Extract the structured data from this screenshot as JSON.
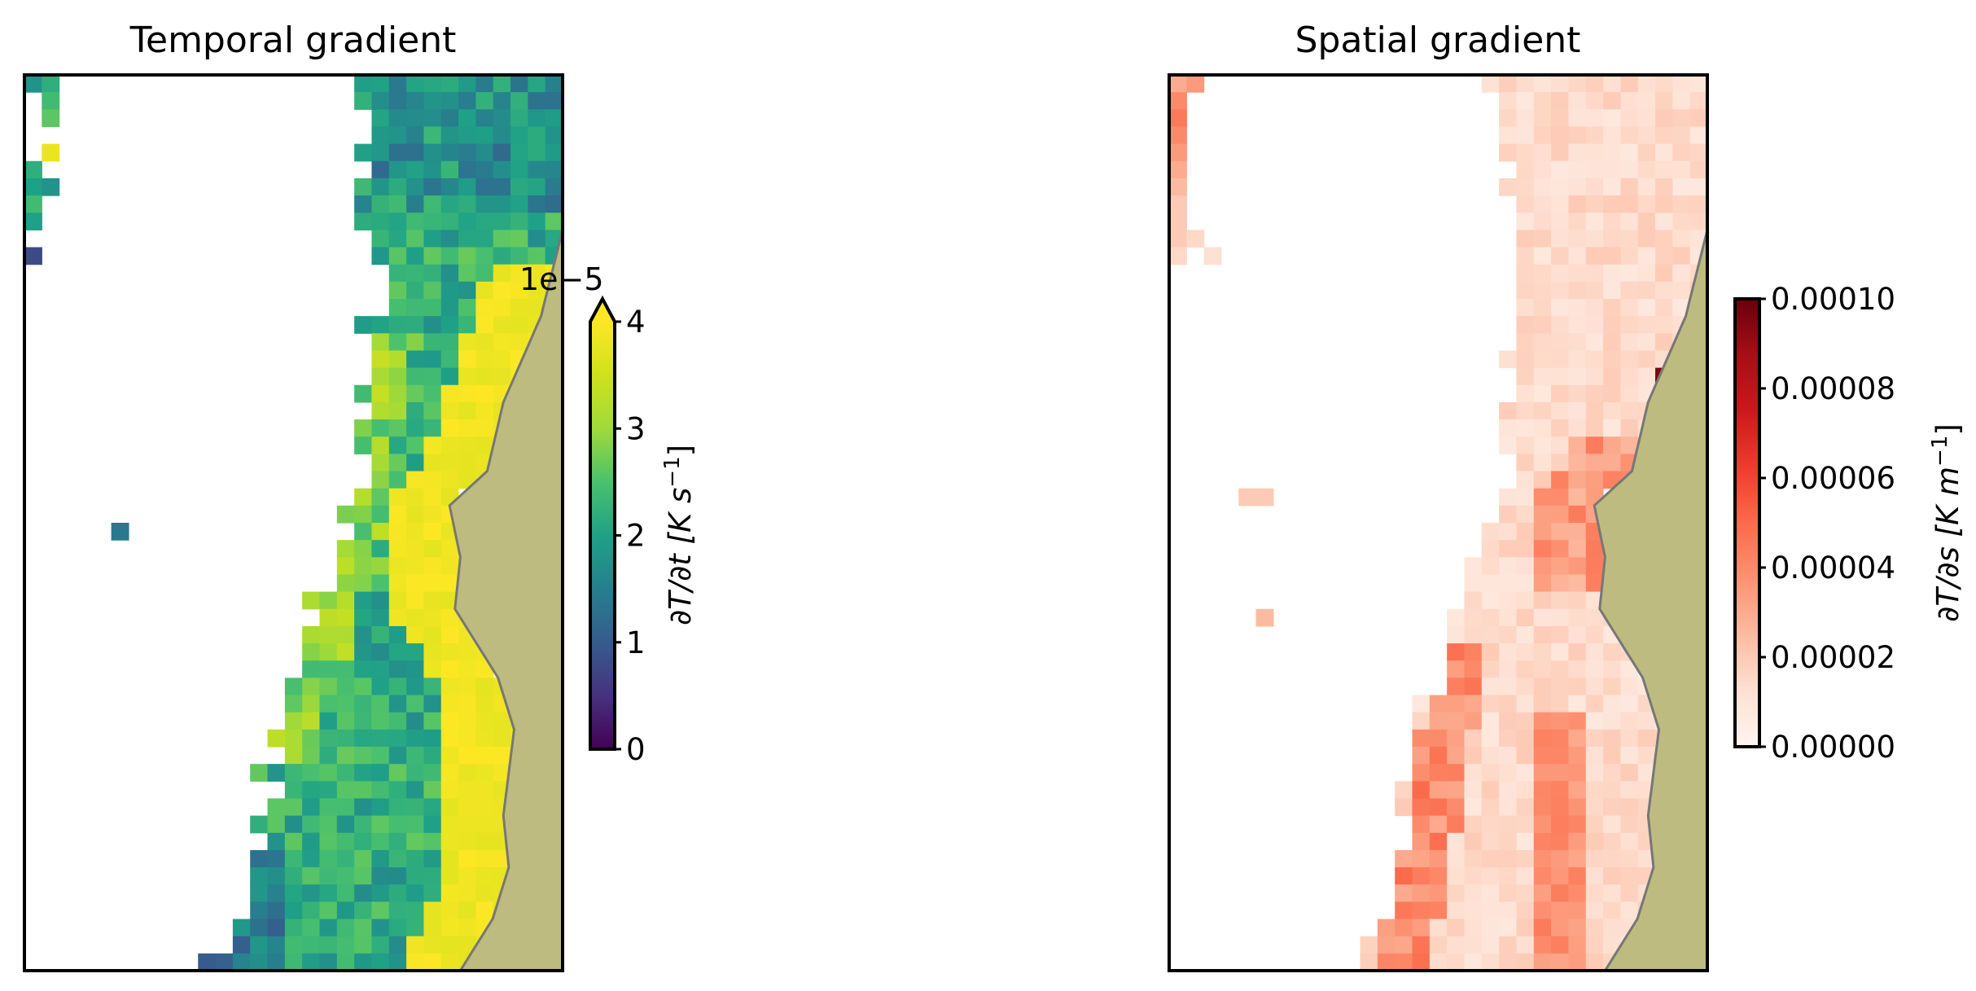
{
  "chart_data": [
    {
      "type": "heatmap",
      "title": "Temporal gradient",
      "colormap": "viridis",
      "colorbar": {
        "label": "∂T/∂t [K s⁻¹]",
        "label_text": "∂T/∂t [K s",
        "label_exp": "−1",
        "label_close": "]",
        "offset_text": "1e−5",
        "range": [
          0,
          4
        ],
        "ticks": [
          "0",
          "1",
          "2",
          "3",
          "4"
        ],
        "extend": "max"
      },
      "land_color": "#bdbb7f",
      "coastline_color": "#777777",
      "grid": false
    },
    {
      "type": "heatmap",
      "title": "Spatial gradient",
      "colormap": "Reds",
      "colorbar": {
        "label": "∂T/∂s [K m⁻¹]",
        "label_text": "∂T/∂s [K m",
        "label_exp": "−1",
        "label_close": "]",
        "range": [
          0,
          0.0001
        ],
        "ticks": [
          "0.00000",
          "0.00002",
          "0.00004",
          "0.00006",
          "0.00008",
          "0.00010"
        ],
        "extend": "neither"
      },
      "land_color": "#bdbb7f",
      "coastline_color": "#777777",
      "grid": false
    }
  ]
}
